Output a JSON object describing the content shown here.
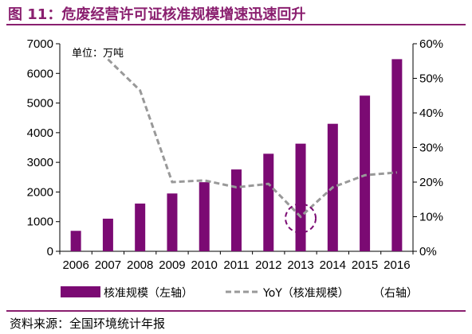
{
  "figure": {
    "title": "图 11：危废经营许可证核准规模增速迅速回升",
    "source": "资料来源：全国环境统计年报",
    "unit_label": "单位：万吨"
  },
  "colors": {
    "bar": "#7b0a73",
    "line": "#999999",
    "highlight": "#7b0a73",
    "title": "#8a1f6f"
  },
  "chart_data": {
    "type": "bar",
    "categories": [
      "2006",
      "2007",
      "2008",
      "2009",
      "2010",
      "2011",
      "2012",
      "2013",
      "2014",
      "2015",
      "2016"
    ],
    "series": [
      {
        "name": "核准规模（左轴）",
        "type": "bar",
        "axis": "left",
        "values": [
          690,
          1100,
          1610,
          1950,
          2330,
          2760,
          3290,
          3630,
          4300,
          5250,
          6480
        ]
      },
      {
        "name": "YoY（核准规模）（右轴）",
        "type": "line",
        "axis": "right",
        "style": "dashed",
        "values": [
          null,
          0.555,
          0.465,
          0.2,
          0.205,
          0.185,
          0.195,
          0.1,
          0.185,
          0.22,
          0.228
        ]
      }
    ],
    "y_left": {
      "min": 0,
      "max": 7000,
      "ticks": [
        "0",
        "1000",
        "2000",
        "3000",
        "4000",
        "5000",
        "6000",
        "7000"
      ]
    },
    "y_right": {
      "min": 0,
      "max": 0.6,
      "ticks": [
        "0%",
        "10%",
        "20%",
        "30%",
        "40%",
        "50%",
        "60%"
      ]
    },
    "annotation": {
      "type": "dashed-circle",
      "category": "2013",
      "value": 0.1
    },
    "legend": {
      "placement": "bottom",
      "entries": [
        "核准规模（左轴）",
        "YoY（核准规模）",
        "（右轴）"
      ]
    },
    "grid": false
  }
}
